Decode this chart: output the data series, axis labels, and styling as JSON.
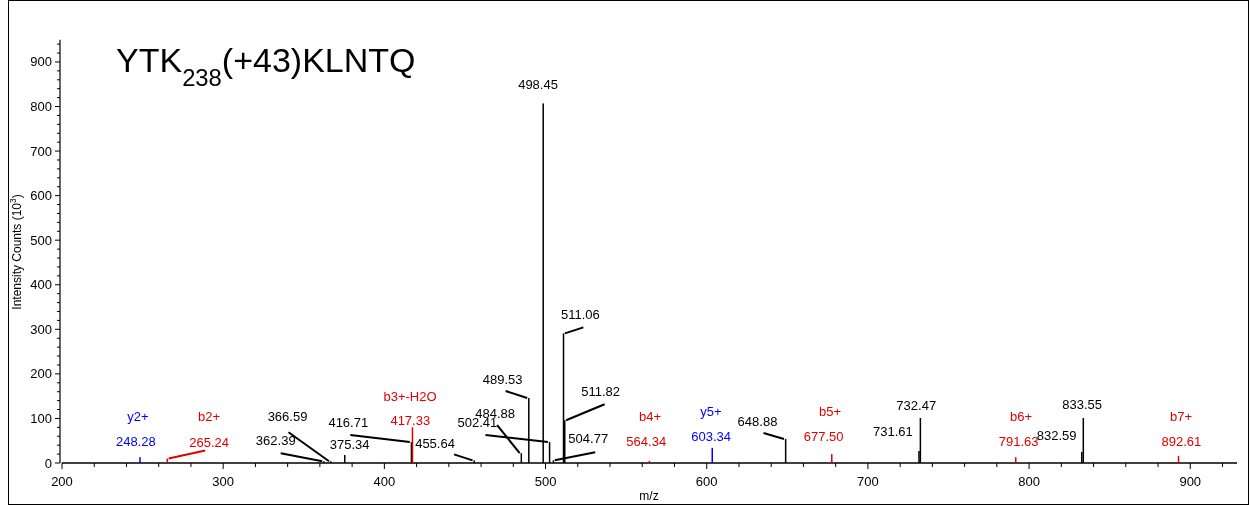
{
  "chart_data": {
    "type": "bar",
    "title": "YTK$_{238}$(+43)KLNTQ",
    "xlabel": "m/z",
    "ylabel": "Intensity Counts (10$^{3}$)",
    "xlim": [
      200,
      929
    ],
    "ylim": [
      0,
      950
    ],
    "xticks": [
      200,
      {
        "value": 220,
        "label": null
      },
      {
        "value": 240,
        "label": null
      },
      {
        "value": 260,
        "label": null
      },
      {
        "value": 280,
        "label": null
      },
      300,
      {
        "value": 320,
        "label": null
      },
      {
        "value": 340,
        "label": null
      },
      {
        "value": 360,
        "label": null
      },
      {
        "value": 380,
        "label": null
      },
      400,
      {
        "value": 420,
        "label": null
      },
      {
        "value": 440,
        "label": null
      },
      {
        "value": 460,
        "label": null
      },
      {
        "value": 480,
        "label": null
      },
      500,
      {
        "value": 520,
        "label": null
      },
      {
        "value": 540,
        "label": null
      },
      {
        "value": 560,
        "label": null
      },
      {
        "value": 580,
        "label": null
      },
      600,
      {
        "value": 620,
        "label": null
      },
      {
        "value": 640,
        "label": null
      },
      {
        "value": 660,
        "label": null
      },
      {
        "value": 680,
        "label": null
      },
      700,
      {
        "value": 720,
        "label": null
      },
      {
        "value": 740,
        "label": null
      },
      {
        "value": 760,
        "label": null
      },
      {
        "value": 780,
        "label": null
      },
      800,
      {
        "value": 820,
        "label": null
      },
      {
        "value": 840,
        "label": null
      },
      {
        "value": 860,
        "label": null
      },
      {
        "value": 880,
        "label": null
      },
      900,
      {
        "value": 920,
        "label": null
      }
    ],
    "yticks": [
      0,
      {
        "value": 20,
        "label": null
      },
      {
        "value": 40,
        "label": null
      },
      {
        "value": 60,
        "label": null
      },
      {
        "value": 80,
        "label": null
      },
      100,
      {
        "value": 120,
        "label": null
      },
      {
        "value": 140,
        "label": null
      },
      {
        "value": 160,
        "label": null
      },
      {
        "value": 180,
        "label": null
      },
      200,
      {
        "value": 220,
        "label": null
      },
      {
        "value": 240,
        "label": null
      },
      {
        "value": 260,
        "label": null
      },
      {
        "value": 280,
        "label": null
      },
      300,
      {
        "value": 320,
        "label": null
      },
      {
        "value": 340,
        "label": null
      },
      {
        "value": 360,
        "label": null
      },
      {
        "value": 380,
        "label": null
      },
      400,
      {
        "value": 420,
        "label": null
      },
      {
        "value": 440,
        "label": null
      },
      {
        "value": 460,
        "label": null
      },
      {
        "value": 480,
        "label": null
      },
      500,
      {
        "value": 520,
        "label": null
      },
      {
        "value": 540,
        "label": null
      },
      {
        "value": 560,
        "label": null
      },
      {
        "value": 580,
        "label": null
      },
      600,
      {
        "value": 620,
        "label": null
      },
      {
        "value": 640,
        "label": null
      },
      {
        "value": 660,
        "label": null
      },
      {
        "value": 680,
        "label": null
      },
      700,
      {
        "value": 720,
        "label": null
      },
      {
        "value": 740,
        "label": null
      },
      {
        "value": 760,
        "label": null
      },
      {
        "value": 780,
        "label": null
      },
      800,
      {
        "value": 820,
        "label": null
      },
      {
        "value": 840,
        "label": null
      },
      {
        "value": 860,
        "label": null
      },
      {
        "value": 880,
        "label": null
      },
      900,
      {
        "value": 920,
        "label": null
      },
      {
        "value": 940,
        "label": null
      }
    ],
    "grid": false,
    "series": [
      {
        "color": "#000000",
        "x": [
          362.39,
          366.59,
          375.34,
          416.71,
          455.64,
          484.88,
          489.53,
          498.45,
          502.41,
          504.77,
          511.06,
          511.82,
          648.88,
          731.61,
          732.47,
          832.59,
          833.55
        ],
        "values": [
          4,
          4,
          18,
          47,
          6,
          22,
          146,
          807,
          47,
          6,
          291,
          96,
          54,
          27,
          101,
          25,
          101
        ]
      },
      {
        "color": "#e00000",
        "x": [
          265.24,
          417.33,
          564.34,
          677.5,
          791.63,
          892.61
        ],
        "values": [
          10,
          80,
          5,
          20,
          13,
          16
        ]
      },
      {
        "color": "#0000ff",
        "x": [
          248.28,
          603.34
        ],
        "values": [
          13,
          34
        ]
      }
    ],
    "annotations": [
      "y2+",
      {
        "text": "248.28",
        "x": 248.28,
        "y": 13
      },
      "b2+",
      {
        "text": "265.24",
        "x": 265.24,
        "y": 10
      },
      {
        "text": "362.39",
        "x": 362.39,
        "y": 4
      },
      {
        "text": "366.59",
        "x": 366.59,
        "y": 4
      },
      {
        "text": "375.34",
        "x": 375.34,
        "y": 18
      },
      {
        "text": "416.71",
        "x": 416.71,
        "y": 47
      },
      "b3+-H2O",
      {
        "text": "417.33",
        "x": 417.33,
        "y": 80
      },
      {
        "text": "455.64",
        "x": 455.64,
        "y": 6
      },
      {
        "text": "484.88",
        "x": 484.88,
        "y": 22
      },
      {
        "text": "489.53",
        "x": 489.53,
        "y": 146
      },
      {
        "text": "498.45",
        "x": 498.45,
        "y": 807
      },
      {
        "text": "502.41",
        "x": 502.41,
        "y": 47
      },
      {
        "text": "504.77",
        "x": 504.77,
        "y": 6
      },
      {
        "text": "511.06",
        "x": 511.06,
        "y": 291
      },
      {
        "text": "511.82",
        "x": 511.82,
        "y": 96
      },
      "b4+",
      {
        "text": "564.34",
        "x": 564.34,
        "y": 5
      },
      "y5+",
      {
        "text": "603.34",
        "x": 603.34,
        "y": 34
      },
      {
        "text": "648.88",
        "x": 648.88,
        "y": 54
      },
      "b5+",
      {
        "text": "677.50",
        "x": 677.5,
        "y": 20
      },
      {
        "text": "731.61",
        "x": 731.61,
        "y": 27
      },
      {
        "text": "732.47",
        "x": 732.47,
        "y": 101
      },
      "b6+",
      {
        "text": "791.63",
        "x": 791.63,
        "y": 13
      },
      {
        "text": "832.59",
        "x": 832.59,
        "y": 25
      },
      {
        "text": "833.55",
        "x": 833.55,
        "y": 101
      },
      "b7+",
      {
        "text": "892.61",
        "x": 892.61,
        "y": 16
      }
    ]
  }
}
